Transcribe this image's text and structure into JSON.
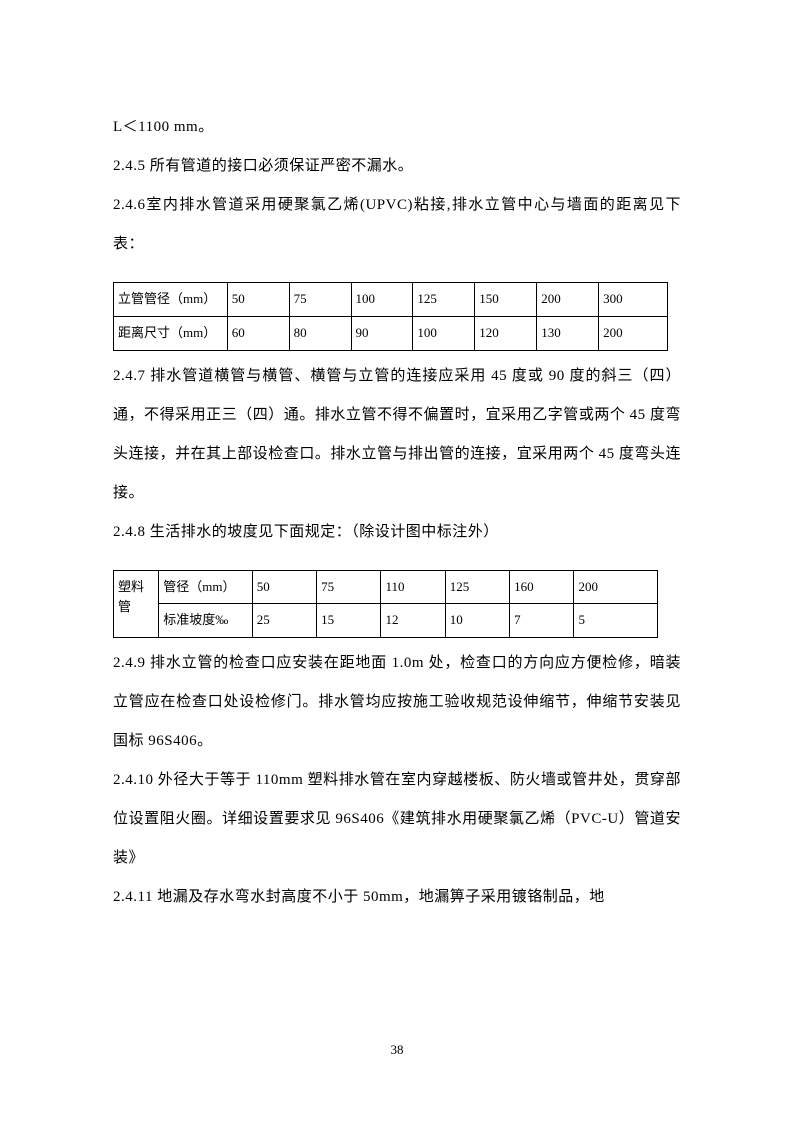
{
  "paragraphs": {
    "p1": "L＜1100 mm。",
    "p2": "2.4.5 所有管道的接口必须保证严密不漏水。",
    "p3": "2.4.6室内排水管道采用硬聚氯乙烯(UPVC)粘接,排水立管中心与墙面的距离见下表：",
    "p4": "2.4.7 排水管道横管与横管、横管与立管的连接应采用 45 度或 90 度的斜三（四）通，不得采用正三（四）通。排水立管不得不偏置时，宜采用乙字管或两个 45 度弯头连接，并在其上部设检查口。排水立管与排出管的连接，宜采用两个 45 度弯头连接。",
    "p5": "2.4.8 生活排水的坡度见下面规定：（除设计图中标注外）",
    "p6": "2.4.9 排水立管的检查口应安装在距地面 1.0m 处，检查口的方向应方便检修，暗装立管应在检查口处设检修门。排水管均应按施工验收规范设伸缩节，伸缩节安装见国标 96S406。",
    "p7": "2.4.10 外径大于等于 110mm 塑料排水管在室内穿越楼板、防火墙或管井处，贯穿部位设置阻火圈。详细设置要求见 96S406《建筑排水用硬聚氯乙烯（PVC-U）管道安装》",
    "p8": "2.4.11 地漏及存水弯水封高度不小于 50mm，地漏箅子采用镀铬制品，地"
  },
  "table1": {
    "headers": [
      "立管管径（mm）",
      "50",
      "75",
      "100",
      "125",
      "150",
      "200",
      "300"
    ],
    "row2": [
      "距离尺寸（mm）",
      "60",
      "80",
      "90",
      "100",
      "120",
      "130",
      "200"
    ]
  },
  "table2": {
    "merge_label": "塑料管",
    "row1": [
      "管径（mm）",
      "50",
      "75",
      "110",
      "125",
      "160",
      "200"
    ],
    "row2": [
      "标准坡度‰",
      "25",
      "15",
      "12",
      "10",
      "7",
      "5"
    ]
  },
  "page_number": "38"
}
